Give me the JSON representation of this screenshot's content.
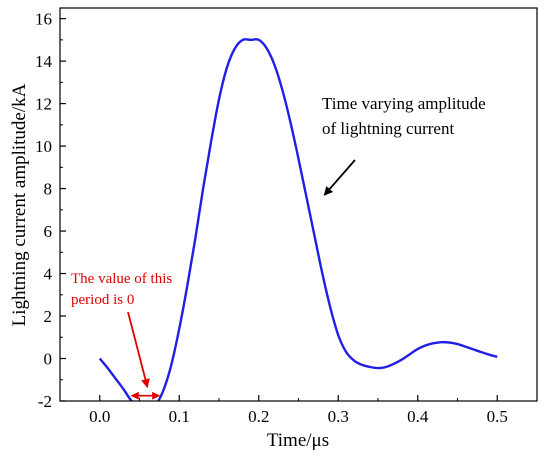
{
  "chart_data": {
    "type": "line",
    "title": "",
    "xlabel": "Time/μs",
    "ylabel": "Lightning current amplitude/kA",
    "xlim": [
      -0.05,
      0.55
    ],
    "ylim": [
      -2,
      16.5
    ],
    "x_ticks": [
      0.0,
      0.1,
      0.2,
      0.3,
      0.4,
      0.5
    ],
    "x_tick_labels": [
      "0.0",
      "0.1",
      "0.2",
      "0.3",
      "0.4",
      "0.5"
    ],
    "y_ticks": [
      -2,
      0,
      2,
      4,
      6,
      8,
      10,
      12,
      14,
      16
    ],
    "y_tick_labels": [
      "-2",
      "0",
      "2",
      "4",
      "6",
      "8",
      "10",
      "12",
      "14",
      "16"
    ],
    "grid": false,
    "series": [
      {
        "color": "#1f1fe6",
        "x": [
          0.0,
          0.01,
          0.02,
          0.03,
          0.04,
          0.05,
          0.06,
          0.07,
          0.08,
          0.09,
          0.1,
          0.11,
          0.12,
          0.13,
          0.14,
          0.15,
          0.16,
          0.17,
          0.18,
          0.19,
          0.2,
          0.21,
          0.22,
          0.23,
          0.24,
          0.25,
          0.26,
          0.27,
          0.28,
          0.29,
          0.3,
          0.31,
          0.32,
          0.33,
          0.34,
          0.35,
          0.36,
          0.37,
          0.38,
          0.39,
          0.4,
          0.41,
          0.42,
          0.43,
          0.44,
          0.45,
          0.46,
          0.47,
          0.48,
          0.49,
          0.5
        ],
        "y": [
          0.0,
          -0.45,
          -0.95,
          -1.45,
          -2.0,
          -2.3,
          -2.4,
          -2.2,
          -1.5,
          -0.3,
          1.4,
          3.4,
          5.6,
          8.0,
          10.2,
          12.2,
          13.7,
          14.6,
          15.0,
          15.0,
          15.0,
          14.6,
          13.8,
          12.6,
          11.1,
          9.4,
          7.6,
          5.8,
          4.0,
          2.4,
          1.1,
          0.3,
          -0.1,
          -0.3,
          -0.4,
          -0.45,
          -0.4,
          -0.25,
          -0.05,
          0.2,
          0.45,
          0.62,
          0.72,
          0.77,
          0.75,
          0.68,
          0.56,
          0.43,
          0.3,
          0.18,
          0.08
        ]
      }
    ],
    "annotations": [
      {
        "text": [
          "Time varying amplitude",
          "of lightning current"
        ],
        "color": "#000000",
        "arrow_to": [
          0.28,
          7.6
        ]
      },
      {
        "text": [
          "The value of this",
          "period is 0"
        ],
        "color": "#e00000",
        "arrow_to": [
          0.06,
          -1.35
        ],
        "interval": [
          0.04,
          0.075
        ],
        "interval_y": -1.75
      }
    ]
  }
}
